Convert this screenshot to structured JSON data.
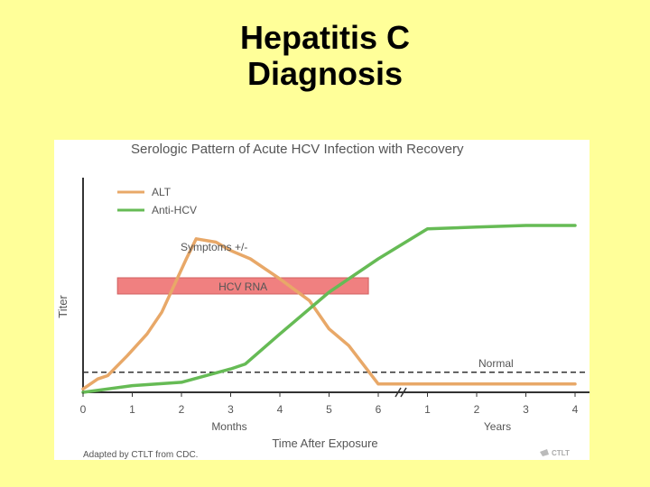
{
  "slide": {
    "title_line1": "Hepatitis C",
    "title_line2": "Diagnosis"
  },
  "colors": {
    "background": "#ffff99",
    "alt": "#e8a868",
    "anti_hcv": "#66bb55",
    "hcv_rna_bar": "#f08080",
    "axis": "#333333",
    "text": "#555555"
  },
  "chart_data": {
    "type": "line",
    "title": "Serologic Pattern of Acute HCV Infection with Recovery",
    "xlabel": "Time After Exposure",
    "ylabel": "Titer",
    "x_group_labels": [
      "Months",
      "Years"
    ],
    "x_ticks": [
      "0",
      "1",
      "2",
      "3",
      "4",
      "5",
      "6",
      "1",
      "2",
      "3",
      "4"
    ],
    "x_axis_break_after": "6",
    "series": [
      {
        "name": "ALT",
        "color": "#e8a868",
        "x": [
          0,
          0.3,
          0.5,
          0.9,
          1.3,
          1.6,
          2.1,
          2.3,
          2.7,
          3.0,
          3.4,
          4.0,
          4.6,
          5.0,
          5.4,
          6.0,
          10.0
        ],
        "y": [
          2,
          8,
          10,
          22,
          35,
          48,
          80,
          92,
          90,
          85,
          80,
          68,
          55,
          38,
          28,
          5,
          5
        ]
      },
      {
        "name": "Anti-HCV",
        "color": "#66bb55",
        "x": [
          0,
          1.0,
          2.0,
          3.0,
          3.3,
          4.0,
          5.0,
          6.0,
          7.0,
          8.0,
          9.0,
          10.0
        ],
        "y": [
          0,
          4,
          6,
          14,
          17,
          35,
          60,
          80,
          98,
          99,
          100,
          100
        ]
      }
    ],
    "annotations": [
      {
        "text": "Symptoms +/-",
        "type": "label"
      },
      {
        "text": "HCV RNA",
        "type": "band",
        "x_start": 0.7,
        "x_end": 5.8
      },
      {
        "text": "Normal",
        "type": "reference-line",
        "y": 12
      }
    ],
    "legend_position": "top-left",
    "grid": false
  },
  "credit": "Adapted by CTLT from CDC.",
  "logo_text": "CTLT"
}
